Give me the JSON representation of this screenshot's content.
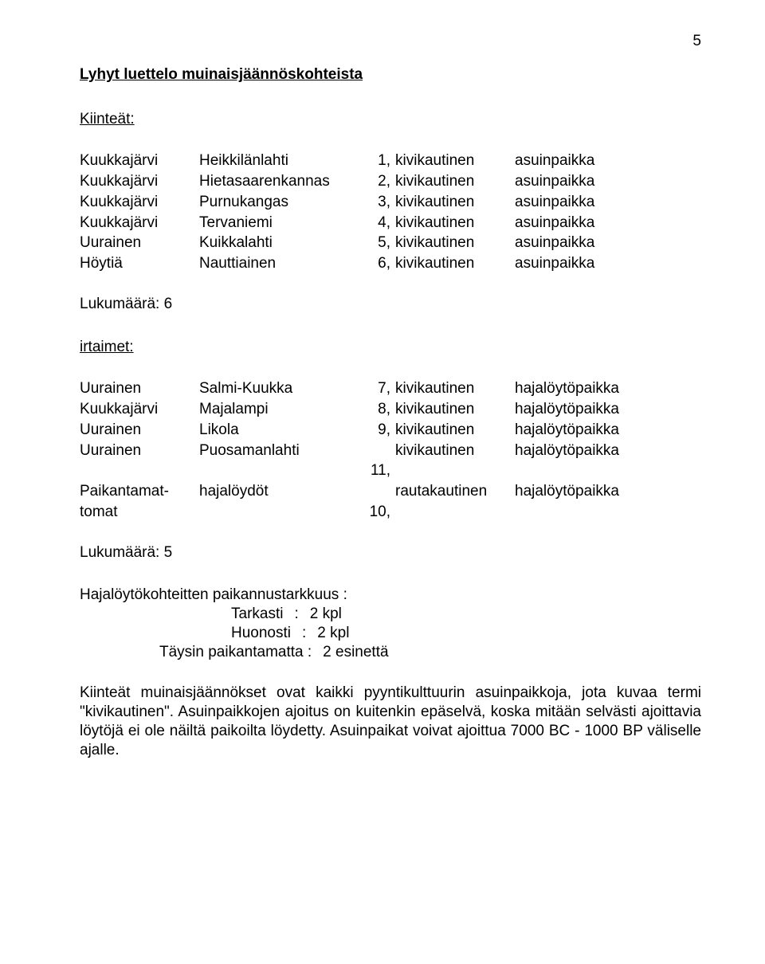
{
  "page_number": "5",
  "heading": "Lyhyt luettelo muinaisjäännöskohteista",
  "kiinteat": {
    "label": "Kiinteät:",
    "rows": [
      {
        "c1": "Kuukkajärvi",
        "c2": "Heikkilänlahti",
        "c3": "1,",
        "c4": "kivikautinen",
        "c5": "asuinpaikka"
      },
      {
        "c1": "Kuukkajärvi",
        "c2": "Hietasaarenkannas",
        "c3": "2,",
        "c4": "kivikautinen",
        "c5": "asuinpaikka"
      },
      {
        "c1": "Kuukkajärvi",
        "c2": "Purnukangas",
        "c3": "3,",
        "c4": "kivikautinen",
        "c5": "asuinpaikka"
      },
      {
        "c1": "Kuukkajärvi",
        "c2": "Tervaniemi",
        "c3": "4,",
        "c4": "kivikautinen",
        "c5": "asuinpaikka"
      },
      {
        "c1": "Uurainen",
        "c2": "Kuikkalahti",
        "c3": "5,",
        "c4": "kivikautinen",
        "c5": "asuinpaikka"
      },
      {
        "c1": "Höytiä",
        "c2": "Nauttiainen",
        "c3": "6,",
        "c4": "kivikautinen",
        "c5": "asuinpaikka"
      }
    ],
    "count_label": "Lukumäärä: 6"
  },
  "irtaimet": {
    "label": "irtaimet:",
    "rows": [
      {
        "c1": "Uurainen",
        "c2": "Salmi-Kuukka",
        "c3": "7,",
        "c4": "kivikautinen",
        "c5": "hajalöytöpaikka"
      },
      {
        "c1": "Kuukkajärvi",
        "c2": "Majalampi",
        "c3": "8,",
        "c4": "kivikautinen",
        "c5": "hajalöytöpaikka"
      },
      {
        "c1": "Uurainen",
        "c2": "Likola",
        "c3": "9,",
        "c4": "kivikautinen",
        "c5": "hajalöytöpaikka"
      },
      {
        "c1": "Uurainen",
        "c2": "Puosamanlahti",
        "c3": "",
        "c4": "kivikautinen",
        "c5": "hajalöytöpaikka"
      },
      {
        "c1": "",
        "c2": "",
        "c3": "11,",
        "c4": "",
        "c5": ""
      },
      {
        "c1": "Paikantamat-",
        "c2": "hajalöydöt",
        "c3": "",
        "c4": "rautakautinen",
        "c5": "hajalöytöpaikka"
      },
      {
        "c1": "tomat",
        "c2": "",
        "c3": "10,",
        "c4": "",
        "c5": ""
      }
    ],
    "count_label": "Lukumäärä: 5"
  },
  "accuracy": {
    "title": "Hajalöytökohteitten paikannustarkkuus :",
    "lines": [
      {
        "label": "Tarkasti",
        "value": "2 kpl",
        "indent": "acc-ind1",
        "show_colon": true
      },
      {
        "label": "Huonosti",
        "value": "2 kpl",
        "indent": "acc-ind1",
        "show_colon": true
      },
      {
        "label": "Täysin paikantamatta :",
        "value": "2 esinettä",
        "indent": "acc-ind2",
        "show_colon": false
      }
    ]
  },
  "paragraph": "Kiinteät muinaisjäännökset ovat kaikki pyyntikulttuurin asuinpaikkoja, jota kuvaa termi \"kivikautinen\". Asuinpaikkojen ajoitus on kuitenkin epäselvä, koska mitään selvästi ajoittavia löytöjä ei ole näiltä paikoilta löydetty. Asuinpaikat voivat ajoittua 7000 BC - 1000 BP väliselle ajalle."
}
